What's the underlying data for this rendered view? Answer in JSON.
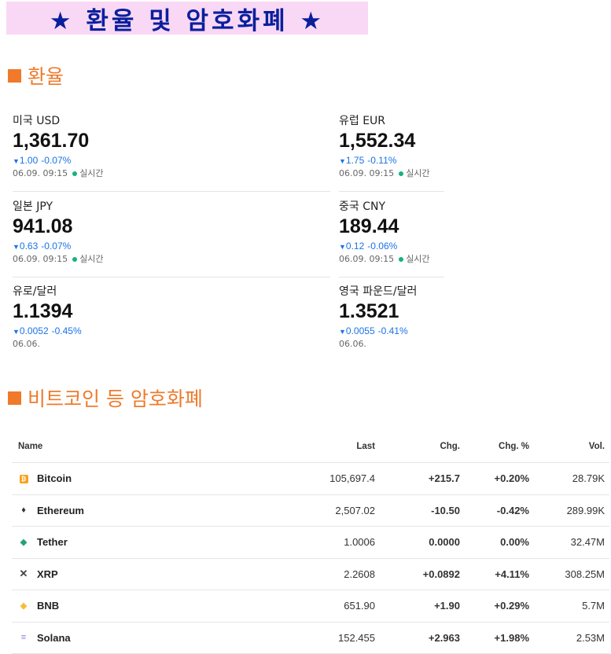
{
  "banner": {
    "title": "★ 환율 및 암호화폐 ★"
  },
  "fx_section": {
    "title": "환율"
  },
  "fx": [
    {
      "name": "미국 USD",
      "price": "1,361.70",
      "change": "1.00",
      "pct": "-0.07%",
      "time": "06.09. 09:15",
      "live": "실시간"
    },
    {
      "name": "유럽 EUR",
      "price": "1,552.34",
      "change": "1.75",
      "pct": "-0.11%",
      "time": "06.09. 09:15",
      "live": "실시간"
    },
    {
      "name": "일본 JPY",
      "price": "941.08",
      "change": "0.63",
      "pct": "-0.07%",
      "time": "06.09. 09:15",
      "live": "실시간"
    },
    {
      "name": "중국 CNY",
      "price": "189.44",
      "change": "0.12",
      "pct": "-0.06%",
      "time": "06.09. 09:15",
      "live": "실시간"
    },
    {
      "name": "유로/달러",
      "price": "1.1394",
      "change": "0.0052",
      "pct": "-0.45%",
      "time": "06.06.",
      "live": ""
    },
    {
      "name": "영국 파운드/달러",
      "price": "1.3521",
      "change": "0.0055",
      "pct": "-0.41%",
      "time": "06.06.",
      "live": ""
    }
  ],
  "crypto_section": {
    "title": "비트코인 등 암호화폐"
  },
  "crypto_table": {
    "headers": {
      "name": "Name",
      "last": "Last",
      "chg": "Chg.",
      "pct": "Chg. %",
      "vol": "Vol."
    },
    "rows": [
      {
        "name": "Bitcoin",
        "icon": "bitcoin-icon",
        "last": "105,697.4",
        "chg": "+215.7",
        "pct": "+0.20%",
        "vol": "28.79K",
        "trend": "pos"
      },
      {
        "name": "Ethereum",
        "icon": "ethereum-icon",
        "last": "2,507.02",
        "chg": "-10.50",
        "pct": "-0.42%",
        "vol": "289.99K",
        "trend": "neg"
      },
      {
        "name": "Tether",
        "icon": "tether-icon",
        "last": "1.0006",
        "chg": "0.0000",
        "pct": "0.00%",
        "vol": "32.47M",
        "trend": "neu"
      },
      {
        "name": "XRP",
        "icon": "xrp-icon",
        "last": "2.2608",
        "chg": "+0.0892",
        "pct": "+4.11%",
        "vol": "308.25M",
        "trend": "pos"
      },
      {
        "name": "BNB",
        "icon": "bnb-icon",
        "last": "651.90",
        "chg": "+1.90",
        "pct": "+0.29%",
        "vol": "5.7M",
        "trend": "pos"
      },
      {
        "name": "Solana",
        "icon": "solana-icon",
        "last": "152.455",
        "chg": "+2.963",
        "pct": "+1.98%",
        "vol": "2.53M",
        "trend": "pos"
      }
    ]
  },
  "colors": {
    "banner_bg": "#f9d8f5",
    "banner_text": "#0a1f9c",
    "section_title": "#ee7b2c",
    "fx_change": "#1a73e8",
    "positive": "#1b8a3a",
    "negative": "#d92b2b",
    "live_dot": "#14b37d"
  }
}
